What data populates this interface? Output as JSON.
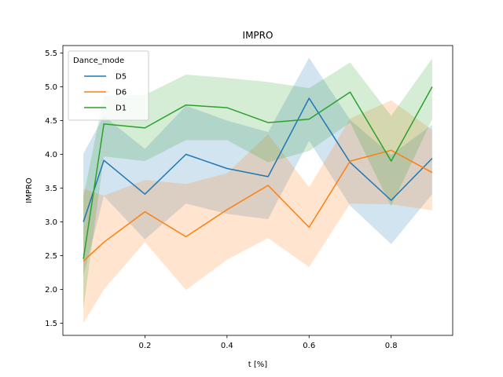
{
  "chart_data": {
    "type": "line",
    "title": "IMPRO",
    "xlabel": "t [%]",
    "ylabel": "IMPRO",
    "xlim": [
      0.0,
      0.95
    ],
    "ylim": [
      1.32,
      5.61
    ],
    "xticks": [
      0.2,
      0.4,
      0.6,
      0.8
    ],
    "xtick_labels": [
      "0.2",
      "0.4",
      "0.6",
      "0.8"
    ],
    "yticks": [
      1.5,
      2.0,
      2.5,
      3.0,
      3.5,
      4.0,
      4.5,
      5.0,
      5.5
    ],
    "ytick_labels": [
      "1.5",
      "2.0",
      "2.5",
      "3.0",
      "3.5",
      "4.0",
      "4.5",
      "5.0",
      "5.5"
    ],
    "grid": false,
    "legend": {
      "title": "Dance_mode",
      "placement": "top-left"
    },
    "x": [
      0.05,
      0.1,
      0.2,
      0.3,
      0.4,
      0.5,
      0.6,
      0.7,
      0.8,
      0.9
    ],
    "series": [
      {
        "name": "D5",
        "color": "#1f77b4",
        "values": [
          3.0,
          3.91,
          3.41,
          4.0,
          3.79,
          3.67,
          4.83,
          3.88,
          3.32,
          3.94
        ],
        "lower": [
          2.2,
          3.38,
          2.74,
          3.27,
          3.12,
          3.04,
          4.2,
          3.24,
          2.67,
          3.41
        ],
        "upper": [
          4.01,
          4.57,
          4.08,
          4.72,
          4.5,
          4.33,
          5.43,
          4.51,
          3.99,
          4.44
        ]
      },
      {
        "name": "D6",
        "color": "#ff7f0e",
        "values": [
          2.42,
          2.7,
          3.15,
          2.78,
          3.18,
          3.54,
          2.92,
          3.9,
          4.06,
          3.73
        ],
        "lower": [
          1.5,
          2.0,
          2.7,
          1.99,
          2.44,
          2.76,
          2.33,
          3.27,
          3.26,
          3.17
        ],
        "upper": [
          3.49,
          3.39,
          3.62,
          3.56,
          3.72,
          4.3,
          3.51,
          4.53,
          4.8,
          4.36
        ]
      },
      {
        "name": "D1",
        "color": "#2ca02c",
        "values": [
          2.45,
          4.45,
          4.39,
          4.73,
          4.69,
          4.47,
          4.52,
          4.92,
          3.9,
          5.0
        ],
        "lower": [
          1.72,
          3.97,
          3.9,
          4.21,
          4.21,
          3.88,
          4.05,
          4.47,
          3.23,
          4.52
        ],
        "upper": [
          3.37,
          4.87,
          4.88,
          5.18,
          5.13,
          5.07,
          4.98,
          5.36,
          4.57,
          5.42
        ]
      }
    ]
  }
}
